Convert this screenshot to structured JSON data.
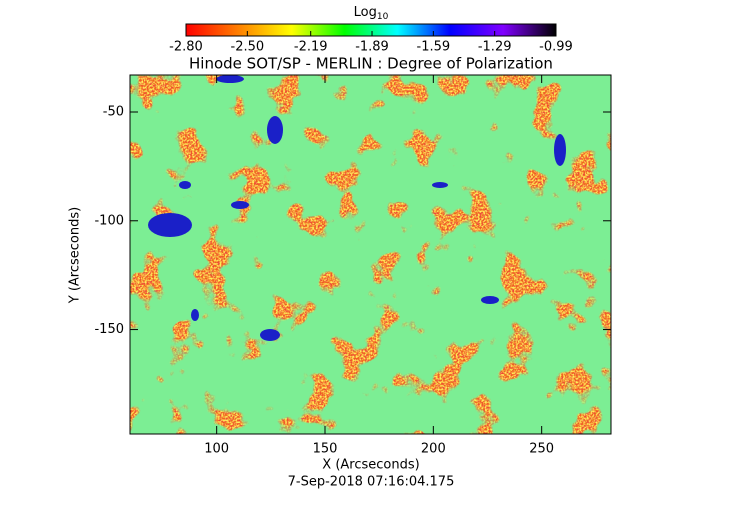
{
  "chart_data": {
    "type": "heatmap",
    "title": "Hinode SOT/SP - MERLIN : Degree of Polarization",
    "subtitle": "7-Sep-2018 07:16:04.175",
    "x_label": "X (Arcseconds)",
    "y_label": "Y (Arcseconds)",
    "xlim": [
      60,
      282
    ],
    "xticks": [
      100,
      150,
      200,
      250
    ],
    "ylim": [
      -198,
      -33
    ],
    "yticks": [
      -50,
      -100,
      -150
    ],
    "colorbar": {
      "label": "Log",
      "label_sub": "10",
      "clim": [
        -2.8,
        -0.99
      ],
      "ticks": [
        {
          "value": -2.8,
          "label": "-2.80"
        },
        {
          "value": -2.5,
          "label": "-2.50"
        },
        -2.19,
        -1.89,
        -1.59,
        -1.29,
        -0.99
      ],
      "colormap": [
        "#ff0000",
        "#ff8000",
        "#ffff00",
        "#00ff00",
        "#00ffff",
        "#0000ff",
        "#8000ff",
        "#000000"
      ]
    }
  }
}
